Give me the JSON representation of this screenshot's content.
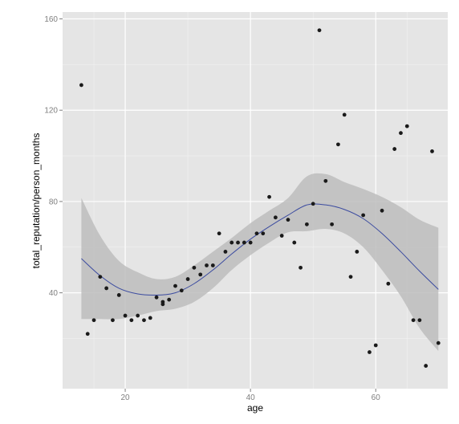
{
  "chart_data": {
    "type": "scatter",
    "xlabel": "age",
    "ylabel": "total_reputation/person_months",
    "xlim": [
      10,
      71.5
    ],
    "ylim": [
      -2,
      163
    ],
    "x_ticks": [
      20,
      40,
      60
    ],
    "y_ticks": [
      40,
      80,
      120,
      160
    ],
    "x_tick_labels": [
      "20",
      "40",
      "60"
    ],
    "y_tick_labels": [
      "40",
      "80",
      "120",
      "160"
    ],
    "grid": true,
    "colors": {
      "panel_background": "#e5e5e5",
      "grid_major": "#ffffff",
      "grid_minor": "#f2f2f2",
      "points": "#1a1a1a",
      "smooth_line": "#3b4ba0",
      "confidence_band": "#bdbdbd",
      "tick_text": "#7f7f7f"
    },
    "points": [
      {
        "x": 13,
        "y": 131
      },
      {
        "x": 14,
        "y": 22
      },
      {
        "x": 15,
        "y": 28
      },
      {
        "x": 16,
        "y": 47
      },
      {
        "x": 17,
        "y": 42
      },
      {
        "x": 18,
        "y": 28
      },
      {
        "x": 19,
        "y": 39
      },
      {
        "x": 20,
        "y": 30
      },
      {
        "x": 21,
        "y": 28
      },
      {
        "x": 22,
        "y": 30
      },
      {
        "x": 23,
        "y": 28
      },
      {
        "x": 24,
        "y": 29
      },
      {
        "x": 25,
        "y": 38
      },
      {
        "x": 26,
        "y": 35
      },
      {
        "x": 26,
        "y": 36
      },
      {
        "x": 27,
        "y": 37
      },
      {
        "x": 28,
        "y": 43
      },
      {
        "x": 29,
        "y": 41
      },
      {
        "x": 30,
        "y": 46
      },
      {
        "x": 31,
        "y": 51
      },
      {
        "x": 32,
        "y": 48
      },
      {
        "x": 33,
        "y": 52
      },
      {
        "x": 34,
        "y": 52
      },
      {
        "x": 35,
        "y": 66
      },
      {
        "x": 36,
        "y": 58
      },
      {
        "x": 37,
        "y": 62
      },
      {
        "x": 38,
        "y": 62
      },
      {
        "x": 39,
        "y": 62
      },
      {
        "x": 40,
        "y": 62
      },
      {
        "x": 41,
        "y": 66
      },
      {
        "x": 42,
        "y": 66
      },
      {
        "x": 43,
        "y": 82
      },
      {
        "x": 44,
        "y": 73
      },
      {
        "x": 45,
        "y": 65
      },
      {
        "x": 46,
        "y": 72
      },
      {
        "x": 47,
        "y": 62
      },
      {
        "x": 48,
        "y": 51
      },
      {
        "x": 49,
        "y": 70
      },
      {
        "x": 50,
        "y": 79
      },
      {
        "x": 51,
        "y": 155
      },
      {
        "x": 52,
        "y": 89
      },
      {
        "x": 53,
        "y": 70
      },
      {
        "x": 54,
        "y": 105
      },
      {
        "x": 55,
        "y": 118
      },
      {
        "x": 56,
        "y": 47
      },
      {
        "x": 57,
        "y": 58
      },
      {
        "x": 58,
        "y": 74
      },
      {
        "x": 59,
        "y": 14
      },
      {
        "x": 60,
        "y": 17
      },
      {
        "x": 61,
        "y": 76
      },
      {
        "x": 62,
        "y": 44
      },
      {
        "x": 63,
        "y": 103
      },
      {
        "x": 64,
        "y": 110
      },
      {
        "x": 65,
        "y": 113
      },
      {
        "x": 66,
        "y": 28
      },
      {
        "x": 67,
        "y": 28
      },
      {
        "x": 68,
        "y": 8
      },
      {
        "x": 69,
        "y": 102
      },
      {
        "x": 70,
        "y": 18
      }
    ],
    "smooth": {
      "x": [
        13,
        16,
        19,
        22,
        25,
        28,
        31,
        34,
        37,
        40,
        43,
        46,
        49,
        52,
        55,
        58,
        61,
        64,
        67,
        70
      ],
      "y": [
        55,
        47.5,
        42,
        39.5,
        39,
        40,
        44,
        50,
        57,
        63.5,
        69,
        74,
        78.5,
        78.5,
        76.5,
        72.5,
        66,
        58,
        49.5,
        41.5
      ],
      "lower": [
        28.5,
        28.5,
        28.5,
        30,
        32,
        33,
        36,
        42,
        50,
        56.5,
        62,
        66.5,
        67,
        68,
        66,
        60,
        50,
        38.5,
        24.5,
        14.5
      ],
      "upper": [
        81.5,
        65,
        54,
        49,
        46,
        47,
        52,
        58,
        64,
        70.5,
        76,
        81.5,
        91,
        92,
        88.5,
        85.5,
        82,
        77.5,
        72,
        68.5
      ]
    }
  }
}
